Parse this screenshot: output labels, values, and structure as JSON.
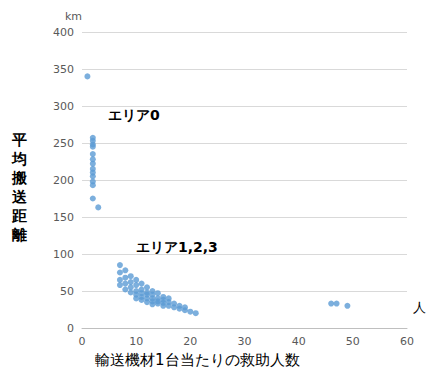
{
  "chart_data": {
    "type": "scatter",
    "x_label": "輸送機材1台当たりの救助人数",
    "x_unit": "人",
    "y_label": "平均搬送距離",
    "y_unit": "km",
    "annotations": [
      "エリア0",
      "エリア1,2,3"
    ],
    "color": "#5b9bd5",
    "marker": "circle",
    "grid": true,
    "x": [
      1,
      2,
      2,
      2,
      2,
      2,
      2,
      2,
      2,
      2,
      2,
      2,
      2,
      2,
      3,
      7,
      7,
      7,
      7,
      8,
      8,
      8,
      8,
      9,
      9,
      9,
      9,
      10,
      10,
      10,
      10,
      10,
      11,
      11,
      11,
      11,
      11,
      12,
      12,
      12,
      12,
      12,
      13,
      13,
      13,
      13,
      13,
      14,
      14,
      14,
      14,
      15,
      15,
      15,
      15,
      16,
      16,
      16,
      17,
      17,
      18,
      18,
      19,
      19,
      20,
      21,
      46,
      47,
      49
    ],
    "values": [
      340,
      257,
      253,
      248,
      245,
      235,
      228,
      222,
      215,
      210,
      205,
      198,
      193,
      175,
      163,
      85,
      75,
      65,
      58,
      78,
      68,
      60,
      52,
      70,
      62,
      55,
      48,
      65,
      58,
      50,
      45,
      40,
      60,
      52,
      47,
      42,
      38,
      55,
      48,
      45,
      40,
      35,
      50,
      45,
      40,
      36,
      32,
      47,
      40,
      36,
      33,
      42,
      38,
      34,
      30,
      40,
      35,
      30,
      33,
      28,
      30,
      26,
      28,
      24,
      22,
      20,
      33,
      33,
      30
    ],
    "xlim": [
      0,
      60
    ],
    "xticks": [
      0,
      10,
      20,
      30,
      40,
      50,
      60
    ],
    "ylim": [
      0,
      400
    ],
    "yticks": [
      0,
      50,
      100,
      150,
      200,
      250,
      300,
      350,
      400
    ]
  }
}
